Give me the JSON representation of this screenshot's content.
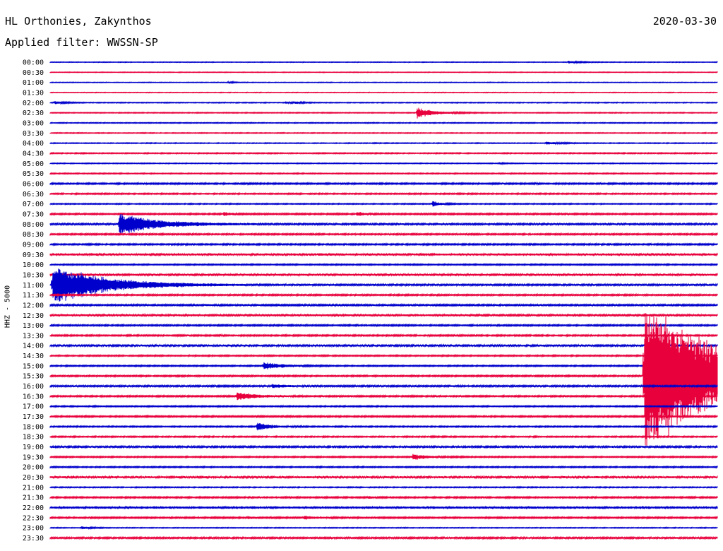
{
  "header": {
    "station": "HL Orthonies, Zakynthos",
    "date": "2020-03-30",
    "filter": "Applied filter: WWSSN-SP"
  },
  "colors": {
    "even_trace": "#0000cc",
    "odd_trace": "#e8003c"
  },
  "chart_data": {
    "type": "line",
    "ylabel": "HHZ - 5000",
    "row_labels": [
      "00:00",
      "00:30",
      "01:00",
      "01:30",
      "02:00",
      "02:30",
      "03:00",
      "03:30",
      "04:00",
      "04:30",
      "05:00",
      "05:30",
      "06:00",
      "06:30",
      "07:00",
      "07:30",
      "08:00",
      "08:30",
      "09:00",
      "09:30",
      "10:00",
      "10:30",
      "11:00",
      "11:30",
      "12:00",
      "12:30",
      "13:00",
      "13:30",
      "14:00",
      "14:30",
      "15:00",
      "15:30",
      "16:00",
      "16:30",
      "17:00",
      "17:30",
      "18:00",
      "18:30",
      "19:00",
      "19:30",
      "20:00",
      "20:30",
      "21:00",
      "21:30",
      "22:00",
      "22:30",
      "23:00",
      "23:30"
    ],
    "row_duration_minutes": 30,
    "noise_level": [
      0.3,
      0.3,
      0.3,
      0.3,
      0.4,
      0.4,
      0.4,
      0.4,
      0.4,
      0.5,
      0.4,
      0.5,
      0.7,
      0.6,
      0.5,
      0.7,
      0.9,
      0.7,
      0.7,
      1.1,
      0.6,
      1.0,
      0.8,
      0.7,
      0.8,
      1.0,
      0.7,
      0.7,
      0.9,
      0.6,
      0.6,
      0.7,
      0.8,
      0.7,
      0.6,
      0.7,
      0.6,
      0.6,
      0.9,
      0.6,
      0.6,
      1.0,
      0.5,
      0.7,
      1.2,
      0.7,
      0.4,
      0.8
    ],
    "events": [
      {
        "row": 0,
        "minute": 23.3,
        "amplitude": 1.5,
        "duration_minutes": 0.8
      },
      {
        "row": 2,
        "minute": 8.0,
        "amplitude": 1.0,
        "duration_minutes": 0.5
      },
      {
        "row": 4,
        "minute": 0.2,
        "amplitude": 2.0,
        "duration_minutes": 0.6
      },
      {
        "row": 4,
        "minute": 11.0,
        "amplitude": 1.5,
        "duration_minutes": 0.5
      },
      {
        "row": 4,
        "minute": 10.6,
        "amplitude": 1.4,
        "duration_minutes": 0.4
      },
      {
        "row": 5,
        "minute": 16.5,
        "amplitude": 7.0,
        "duration_minutes": 1.2
      },
      {
        "row": 8,
        "minute": 22.3,
        "amplitude": 2.0,
        "duration_minutes": 0.8
      },
      {
        "row": 10,
        "minute": 20.2,
        "amplitude": 1.0,
        "duration_minutes": 0.3
      },
      {
        "row": 14,
        "minute": 17.2,
        "amplitude": 4.0,
        "duration_minutes": 0.5
      },
      {
        "row": 15,
        "minute": 7.8,
        "amplitude": 2.5,
        "duration_minutes": 0.5
      },
      {
        "row": 15,
        "minute": 13.8,
        "amplitude": 2.5,
        "duration_minutes": 0.5
      },
      {
        "row": 16,
        "minute": 3.1,
        "amplitude": 15.0,
        "duration_minutes": 2.5
      },
      {
        "row": 22,
        "minute": 0.1,
        "amplitude": 28.0,
        "duration_minutes": 3.5
      },
      {
        "row": 31,
        "minute": 26.7,
        "amplitude": 100.0,
        "duration_minutes": 6.0
      },
      {
        "row": 30,
        "minute": 9.6,
        "amplitude": 5.0,
        "duration_minutes": 1.2
      },
      {
        "row": 33,
        "minute": 8.4,
        "amplitude": 6.0,
        "duration_minutes": 1.2
      },
      {
        "row": 36,
        "minute": 9.3,
        "amplitude": 5.0,
        "duration_minutes": 1.0
      },
      {
        "row": 39,
        "minute": 16.3,
        "amplitude": 4.0,
        "duration_minutes": 1.0
      },
      {
        "row": 45,
        "minute": 11.4,
        "amplitude": 2.5,
        "duration_minutes": 0.8
      },
      {
        "row": 45,
        "minute": 8.9,
        "amplitude": 1.5,
        "duration_minutes": 0.5
      },
      {
        "row": 46,
        "minute": 1.4,
        "amplitude": 2.0,
        "duration_minutes": 0.6
      },
      {
        "row": 43,
        "minute": 14.3,
        "amplitude": 1.5,
        "duration_minutes": 0.4
      },
      {
        "row": 24,
        "minute": 7.0,
        "amplitude": 1.2,
        "duration_minutes": 0.4
      },
      {
        "row": 32,
        "minute": 10.0,
        "amplitude": 2.0,
        "duration_minutes": 1.0
      }
    ]
  }
}
